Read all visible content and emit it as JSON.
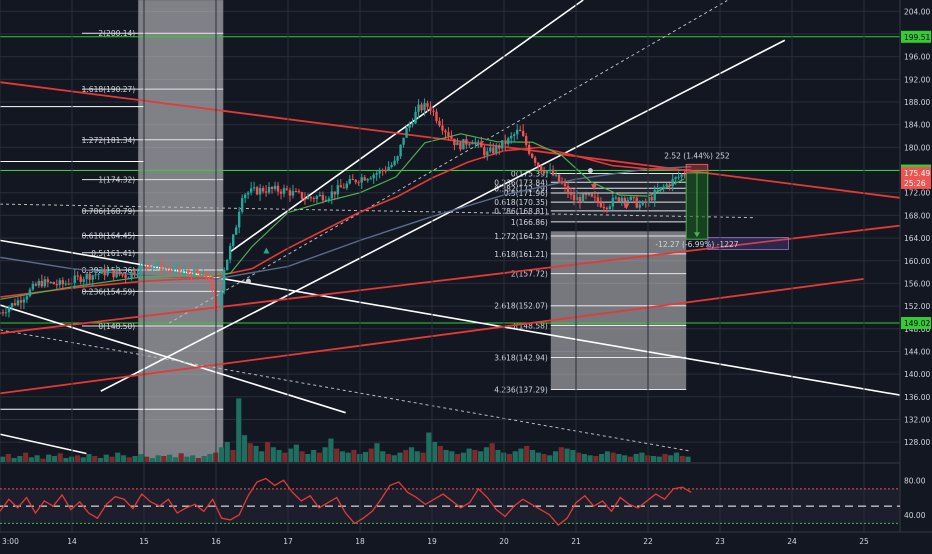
{
  "chart_data": {
    "type": "candlestick",
    "theme": {
      "background": "#131722",
      "grid": "#2a2e39",
      "axis_text": "#d1d4dc",
      "candle_up": "#26a69a",
      "candle_down": "#ef5350",
      "volume_up": "#1e6f5f",
      "volume_down": "#7c2a2a",
      "ema_fast": "#4caf50",
      "ema_slow": "#e53935",
      "sma_long": "#5b6b8c",
      "trendline_white": "#ffffff",
      "trendline_red": "#e53935",
      "hline_green": "#33cc33",
      "fib_box": "#e6e6e6",
      "rsi_line": "#e53935",
      "rsi_band": "#ffffff"
    },
    "price_axis": {
      "ylim": [
        124.5,
        206
      ],
      "ticks": [
        "204.00",
        "200.00",
        "196.00",
        "192.00",
        "188.00",
        "184.00",
        "180.00",
        "176.00",
        "172.00",
        "168.00",
        "164.00",
        "160.00",
        "156.00",
        "152.00",
        "148.00",
        "144.00",
        "140.00",
        "136.00",
        "132.00",
        "128.00"
      ]
    },
    "time_axis": {
      "xlim": [
        13.0,
        25.5
      ],
      "ticks": [
        {
          "x": 13.0,
          "label": "3:00"
        },
        {
          "x": 14.0,
          "label": "14"
        },
        {
          "x": 15.0,
          "label": "15"
        },
        {
          "x": 16.0,
          "label": "16"
        },
        {
          "x": 17.0,
          "label": "17"
        },
        {
          "x": 18.0,
          "label": "18"
        },
        {
          "x": 19.0,
          "label": "19"
        },
        {
          "x": 20.0,
          "label": "20"
        },
        {
          "x": 21.0,
          "label": "21"
        },
        {
          "x": 22.0,
          "label": "22"
        },
        {
          "x": 23.0,
          "label": "23"
        },
        {
          "x": 24.0,
          "label": "24"
        },
        {
          "x": 25.0,
          "label": "25"
        }
      ]
    },
    "price_path": [
      [
        13.0,
        150.6
      ],
      [
        13.3,
        153.0
      ],
      [
        13.6,
        156.2
      ],
      [
        13.9,
        155.8
      ],
      [
        14.2,
        157.2
      ],
      [
        14.5,
        158.0
      ],
      [
        14.8,
        157.4
      ],
      [
        15.1,
        159.6
      ],
      [
        15.4,
        158.4
      ],
      [
        15.7,
        157.8
      ],
      [
        15.95,
        157.0
      ],
      [
        16.05,
        149.8
      ],
      [
        16.15,
        158.5
      ],
      [
        16.3,
        164.8
      ],
      [
        16.4,
        171.8
      ],
      [
        16.7,
        172.6
      ],
      [
        17.0,
        172.4
      ],
      [
        17.3,
        171.0
      ],
      [
        17.6,
        171.6
      ],
      [
        18.0,
        174.4
      ],
      [
        18.3,
        175.6
      ],
      [
        18.55,
        177.4
      ],
      [
        18.65,
        182.2
      ],
      [
        18.85,
        186.8
      ],
      [
        19.0,
        187.4
      ],
      [
        19.15,
        184.4
      ],
      [
        19.4,
        180.2
      ],
      [
        19.6,
        181.4
      ],
      [
        19.8,
        178.8
      ],
      [
        20.1,
        181.2
      ],
      [
        20.25,
        183.0
      ],
      [
        20.4,
        179.2
      ],
      [
        20.55,
        176.4
      ],
      [
        20.7,
        175.4
      ],
      [
        20.85,
        173.4
      ],
      [
        21.0,
        170.8
      ],
      [
        21.2,
        171.2
      ],
      [
        21.45,
        169.8
      ],
      [
        21.7,
        171.4
      ],
      [
        21.95,
        169.6
      ],
      [
        22.15,
        172.0
      ],
      [
        22.35,
        173.8
      ],
      [
        22.55,
        175.5
      ]
    ],
    "ema_fast": [
      [
        13.0,
        153.2
      ],
      [
        14.0,
        155.4
      ],
      [
        15.0,
        157.2
      ],
      [
        15.9,
        157.4
      ],
      [
        16.2,
        157.8
      ],
      [
        16.5,
        162.5
      ],
      [
        17.0,
        168.5
      ],
      [
        17.5,
        170.4
      ],
      [
        18.0,
        172.0
      ],
      [
        18.5,
        174.8
      ],
      [
        18.9,
        180.8
      ],
      [
        19.4,
        182.4
      ],
      [
        19.9,
        181.0
      ],
      [
        20.4,
        180.9
      ],
      [
        20.8,
        178.6
      ],
      [
        21.2,
        174.0
      ],
      [
        21.6,
        171.6
      ],
      [
        22.0,
        171.4
      ],
      [
        22.5,
        174.4
      ]
    ],
    "ema_slow": [
      [
        13.0,
        153.6
      ],
      [
        14.0,
        155.2
      ],
      [
        15.0,
        156.4
      ],
      [
        15.9,
        157.0
      ],
      [
        16.5,
        158.6
      ],
      [
        17.0,
        162.2
      ],
      [
        17.5,
        165.4
      ],
      [
        18.0,
        168.6
      ],
      [
        18.5,
        171.2
      ],
      [
        19.0,
        174.6
      ],
      [
        19.5,
        177.4
      ],
      [
        20.0,
        179.4
      ],
      [
        20.5,
        180.0
      ],
      [
        21.0,
        178.5
      ],
      [
        21.5,
        176.8
      ],
      [
        22.0,
        176.2
      ],
      [
        22.6,
        176.0
      ]
    ],
    "sma_long": [
      [
        13.0,
        160.6
      ],
      [
        14.0,
        158.6
      ],
      [
        15.0,
        157.4
      ],
      [
        16.0,
        156.8
      ],
      [
        17.0,
        159.0
      ],
      [
        18.0,
        163.6
      ],
      [
        19.0,
        167.8
      ],
      [
        20.0,
        171.6
      ],
      [
        21.0,
        174.4
      ],
      [
        22.0,
        176.2
      ],
      [
        22.6,
        176.6
      ]
    ],
    "horizontal_levels": [
      {
        "price": 199.51,
        "label": "199.51",
        "color": "#33cc33"
      },
      {
        "price": 175.92,
        "label": "175.92",
        "color": "#33cc33"
      },
      {
        "price": 149.02,
        "label": "149.02",
        "color": "#33cc33"
      }
    ],
    "current_price": {
      "price": 175.49,
      "label": "175.49",
      "countdown": "25:26",
      "color": "#ef5350"
    },
    "trendlines": [
      {
        "color": "#ffffff",
        "width": 1.6,
        "dash": false,
        "points": [
          [
            13.0,
            163.6
          ],
          [
            25.5,
            136.3
          ]
        ]
      },
      {
        "color": "#ffffff",
        "width": 1.6,
        "dash": false,
        "points": [
          [
            13.0,
            152.2
          ],
          [
            17.8,
            133.2
          ]
        ]
      },
      {
        "color": "#ffffff",
        "width": 1.6,
        "dash": false,
        "points": [
          [
            13.0,
            129.4
          ],
          [
            14.2,
            126.0
          ]
        ]
      },
      {
        "color": "#ffffff",
        "width": 1.6,
        "dash": false,
        "points": [
          [
            14.4,
            137.0
          ],
          [
            23.9,
            198.9
          ]
        ]
      },
      {
        "color": "#ffffff",
        "width": 1.6,
        "dash": false,
        "points": [
          [
            16.2,
            161.6
          ],
          [
            21.1,
            206.0
          ]
        ]
      },
      {
        "color": "#bbbbbb",
        "width": 1.0,
        "dash": true,
        "points": [
          [
            15.35,
            149.0
          ],
          [
            23.1,
            205.9
          ]
        ]
      },
      {
        "color": "#bbbbbb",
        "width": 1.0,
        "dash": true,
        "points": [
          [
            13.0,
            147.8
          ],
          [
            22.6,
            126.4
          ]
        ]
      },
      {
        "color": "#bbbbbb",
        "width": 1.0,
        "dash": true,
        "points": [
          [
            13.0,
            170.0
          ],
          [
            23.5,
            167.6
          ]
        ]
      },
      {
        "color": "#e53935",
        "width": 1.8,
        "dash": false,
        "points": [
          [
            13.0,
            191.5
          ],
          [
            25.5,
            171.1
          ]
        ]
      },
      {
        "color": "#e53935",
        "width": 1.8,
        "dash": false,
        "points": [
          [
            13.0,
            147.2
          ],
          [
            25.5,
            166.2
          ]
        ]
      },
      {
        "color": "#e53935",
        "width": 1.8,
        "dash": false,
        "points": [
          [
            13.0,
            136.6
          ],
          [
            25.0,
            156.8
          ]
        ]
      }
    ],
    "fib_left": {
      "x_range": [
        14.0,
        16.1
      ],
      "levels": [
        {
          "ratio": "2",
          "price": 200.14,
          "label": "2(200.14)"
        },
        {
          "ratio": "1.618",
          "price": 190.27,
          "label": "1.618(190.27)"
        },
        {
          "ratio": "1.272",
          "price": 181.34,
          "label": "1.272(181.34)"
        },
        {
          "ratio": "1",
          "price": 174.32,
          "label": "1(174.32)"
        },
        {
          "ratio": "0.786",
          "price": 168.79,
          "label": "0.786(168.79)"
        },
        {
          "ratio": "0.618",
          "price": 164.45,
          "label": "0.618(164.45)"
        },
        {
          "ratio": "0.5",
          "price": 161.41,
          "label": "0.5(161.41)"
        },
        {
          "ratio": "0.382",
          "price": 158.36,
          "label": "0.382(158.36)"
        },
        {
          "ratio": "0.236",
          "price": 154.59,
          "label": "0.236(154.59)"
        },
        {
          "ratio": "0",
          "price": 148.5,
          "label": "0(148.50)"
        }
      ],
      "shaded_x_range": [
        14.92,
        16.1
      ]
    },
    "fib_right": {
      "x_range": [
        20.65,
        22.53
      ],
      "levels": [
        {
          "ratio": "0",
          "price": 175.39,
          "label": "0(175.39)"
        },
        {
          "ratio": "0.236",
          "price": 173.84,
          "label": "0.236(173.84)"
        },
        {
          "ratio": "0.382",
          "price": 172.79,
          "label": "0.382(172.79)"
        },
        {
          "ratio": "0.5",
          "price": 171.96,
          "label": "0.5(171.96)"
        },
        {
          "ratio": "0.618",
          "price": 170.35,
          "label": "0.618(170.35)"
        },
        {
          "ratio": "0.786",
          "price": 168.81,
          "label": "0.786(168.81)"
        },
        {
          "ratio": "1",
          "price": 166.86,
          "label": "1(166.86)"
        },
        {
          "ratio": "1.272",
          "price": 164.37,
          "label": "1.272(164.37)"
        },
        {
          "ratio": "1.618",
          "price": 161.21,
          "label": "1.618(161.21)"
        },
        {
          "ratio": "2",
          "price": 157.72,
          "label": "2(157.72)"
        },
        {
          "ratio": "2.618",
          "price": 152.07,
          "label": "2.618(152.07)"
        },
        {
          "ratio": "3",
          "price": 148.58,
          "label": "3(148.58)"
        },
        {
          "ratio": "3.618",
          "price": 142.94,
          "label": "3.618(142.94)"
        },
        {
          "ratio": "4.236",
          "price": 137.29,
          "label": "4.236(137.29)"
        }
      ],
      "shaded_price_range": [
        137.29,
        165.2
      ]
    },
    "measure_tool": {
      "x_range": [
        22.53,
        22.83
      ],
      "entry": 175.49,
      "top": 177.0,
      "bottom": 163.8,
      "stop_box_x_range": [
        22.83,
        23.95
      ],
      "stop_box_price_range": [
        162.0,
        164.1
      ],
      "upper_label": "2.52 (1.44%) 252",
      "lower_label": "-12.27 (-6.99%) -1227"
    },
    "markers": [
      {
        "type": "dot",
        "x": 16.45,
        "y": 156.4,
        "color": "#cccccc"
      },
      {
        "type": "dot",
        "x": 21.2,
        "y": 175.9,
        "color": "#cccccc"
      },
      {
        "type": "arrow_up",
        "x": 16.7,
        "y": 161.8,
        "color": "#26a69a"
      },
      {
        "type": "arrow_down",
        "x": 21.25,
        "y": 173.0,
        "color": "#ef5350"
      },
      {
        "type": "arrow_down",
        "x": 21.7,
        "y": 169.6,
        "color": "#ef5350"
      }
    ],
    "volume": {
      "ymax": 100,
      "values": [
        8,
        12,
        6,
        9,
        14,
        7,
        10,
        5,
        11,
        9,
        13,
        6,
        8,
        10,
        7,
        12,
        9,
        6,
        11,
        8,
        14,
        10,
        7,
        9,
        12,
        8,
        6,
        10,
        9,
        11,
        7,
        13,
        8,
        10,
        6,
        9,
        12,
        14,
        22,
        30,
        18,
        95,
        40,
        28,
        24,
        16,
        30,
        22,
        18,
        14,
        20,
        26,
        16,
        12,
        18,
        14,
        22,
        35,
        20,
        16,
        14,
        18,
        12,
        15,
        20,
        28,
        16,
        12,
        10,
        14,
        18,
        22,
        16,
        14,
        44,
        30,
        24,
        18,
        16,
        12,
        14,
        20,
        18,
        16,
        22,
        28,
        18,
        14,
        12,
        16,
        20,
        24,
        18,
        14,
        12,
        10,
        16,
        22,
        20,
        18,
        14,
        12,
        10,
        9,
        12,
        16,
        14,
        12,
        10,
        8,
        12,
        14,
        10,
        9,
        8,
        12,
        10,
        14,
        9,
        8
      ]
    },
    "rsi": {
      "ylim": [
        20,
        100
      ],
      "ticks": [
        {
          "v": 80,
          "label": "80.00"
        },
        {
          "v": 40,
          "label": "40.00"
        }
      ],
      "upper_band": 70,
      "mid_band": 50,
      "lower_band": 30,
      "values": [
        44,
        58,
        48,
        60,
        42,
        56,
        50,
        63,
        46,
        55,
        42,
        36,
        52,
        61,
        58,
        47,
        64,
        55,
        50,
        58,
        42,
        48,
        52,
        44,
        58,
        36,
        34,
        40,
        62,
        78,
        82,
        74,
        80,
        66,
        56,
        62,
        48,
        54,
        60,
        42,
        30,
        36,
        44,
        58,
        74,
        78,
        66,
        60,
        52,
        58,
        64,
        56,
        48,
        54,
        70,
        60,
        46,
        38,
        50,
        58,
        52,
        46,
        40,
        28,
        36,
        54,
        62,
        50,
        56,
        44,
        60,
        52,
        48,
        56,
        64,
        58,
        70,
        72,
        66
      ]
    }
  }
}
